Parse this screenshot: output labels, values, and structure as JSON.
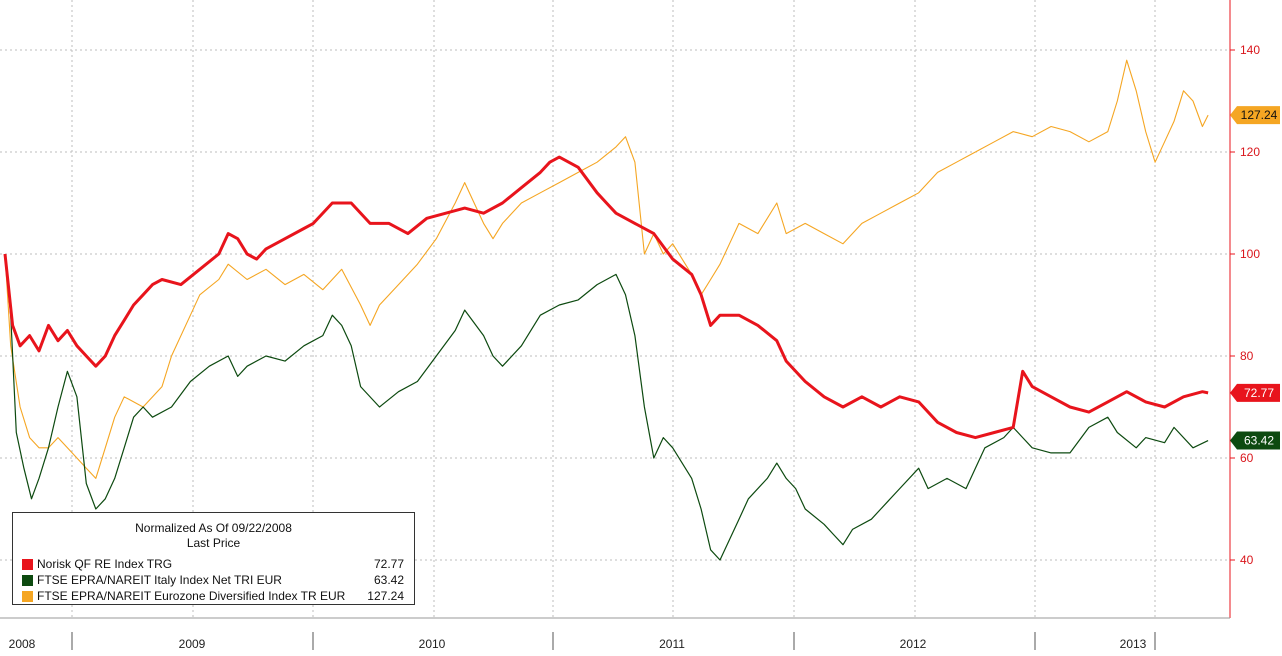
{
  "chart_data": {
    "type": "line",
    "legend": {
      "title": "Normalized As Of 09/22/2008",
      "subtitle": "Last Price",
      "placement": "bottom-left"
    },
    "x_labels": [
      "2008",
      "2009",
      "2010",
      "2011",
      "2012",
      "2013"
    ],
    "y_ticks": [
      40,
      60,
      80,
      100,
      120,
      140
    ],
    "ylim": [
      28,
      160
    ],
    "grid": true,
    "y_axis_side": "right",
    "series": [
      {
        "name": "Norisk QF RE Index TRG",
        "last": "72.77",
        "color": "#e8141c",
        "values": [
          [
            2008.72,
            100
          ],
          [
            2008.76,
            86
          ],
          [
            2008.8,
            82
          ],
          [
            2008.85,
            84
          ],
          [
            2008.9,
            81
          ],
          [
            2008.95,
            86
          ],
          [
            2009.0,
            83
          ],
          [
            2009.05,
            85
          ],
          [
            2009.1,
            82
          ],
          [
            2009.15,
            80
          ],
          [
            2009.2,
            78
          ],
          [
            2009.25,
            80
          ],
          [
            2009.3,
            84
          ],
          [
            2009.35,
            87
          ],
          [
            2009.4,
            90
          ],
          [
            2009.45,
            92
          ],
          [
            2009.5,
            94
          ],
          [
            2009.55,
            95
          ],
          [
            2009.65,
            94
          ],
          [
            2009.75,
            97
          ],
          [
            2009.85,
            100
          ],
          [
            2009.9,
            104
          ],
          [
            2009.95,
            103
          ],
          [
            2010.0,
            100
          ],
          [
            2010.05,
            99
          ],
          [
            2010.1,
            101
          ],
          [
            2010.2,
            103
          ],
          [
            2010.3,
            105
          ],
          [
            2010.35,
            106
          ],
          [
            2010.45,
            110
          ],
          [
            2010.55,
            110
          ],
          [
            2010.65,
            106
          ],
          [
            2010.75,
            106
          ],
          [
            2010.85,
            104
          ],
          [
            2010.95,
            107
          ],
          [
            2011.05,
            108
          ],
          [
            2011.15,
            109
          ],
          [
            2011.25,
            108
          ],
          [
            2011.35,
            110
          ],
          [
            2011.45,
            113
          ],
          [
            2011.55,
            116
          ],
          [
            2011.6,
            118
          ],
          [
            2011.65,
            119
          ],
          [
            2011.75,
            117
          ],
          [
            2011.85,
            112
          ],
          [
            2011.9,
            110
          ],
          [
            2011.95,
            108
          ],
          [
            2012.05,
            106
          ],
          [
            2012.15,
            104
          ],
          [
            2012.25,
            99
          ],
          [
            2012.35,
            96
          ],
          [
            2012.4,
            92
          ],
          [
            2012.45,
            86
          ],
          [
            2012.5,
            88
          ],
          [
            2012.6,
            88
          ],
          [
            2012.7,
            86
          ],
          [
            2012.8,
            83
          ],
          [
            2012.85,
            79
          ],
          [
            2012.95,
            75
          ],
          [
            2013.05,
            72
          ],
          [
            2013.15,
            70
          ],
          [
            2013.25,
            72
          ],
          [
            2013.35,
            70
          ],
          [
            2013.45,
            72
          ],
          [
            2013.55,
            71
          ],
          [
            2013.65,
            67
          ],
          [
            2013.75,
            65
          ],
          [
            2013.85,
            64
          ],
          [
            2013.95,
            65
          ],
          [
            2014.05,
            66
          ],
          [
            2014.1,
            77
          ],
          [
            2014.15,
            74
          ],
          [
            2014.25,
            72
          ],
          [
            2014.35,
            70
          ],
          [
            2014.45,
            69
          ],
          [
            2014.55,
            71
          ],
          [
            2014.65,
            73
          ],
          [
            2014.75,
            71
          ],
          [
            2014.85,
            70
          ],
          [
            2014.95,
            72
          ],
          [
            2015.05,
            73
          ],
          [
            2015.08,
            72.77
          ]
        ]
      },
      {
        "name": "FTSE EPRA/NAREIT Italy Index Net TRI EUR",
        "last": "63.42",
        "color": "#0d4a10",
        "values": [
          [
            2008.72,
            100
          ],
          [
            2008.75,
            88
          ],
          [
            2008.78,
            65
          ],
          [
            2008.82,
            58
          ],
          [
            2008.86,
            52
          ],
          [
            2008.9,
            56
          ],
          [
            2008.95,
            62
          ],
          [
            2009.0,
            70
          ],
          [
            2009.05,
            77
          ],
          [
            2009.1,
            72
          ],
          [
            2009.15,
            55
          ],
          [
            2009.2,
            50
          ],
          [
            2009.25,
            52
          ],
          [
            2009.3,
            56
          ],
          [
            2009.35,
            62
          ],
          [
            2009.4,
            68
          ],
          [
            2009.45,
            70
          ],
          [
            2009.5,
            68
          ],
          [
            2009.6,
            70
          ],
          [
            2009.7,
            75
          ],
          [
            2009.8,
            78
          ],
          [
            2009.9,
            80
          ],
          [
            2009.95,
            76
          ],
          [
            2010.0,
            78
          ],
          [
            2010.1,
            80
          ],
          [
            2010.2,
            79
          ],
          [
            2010.3,
            82
          ],
          [
            2010.4,
            84
          ],
          [
            2010.45,
            88
          ],
          [
            2010.5,
            86
          ],
          [
            2010.55,
            82
          ],
          [
            2010.6,
            74
          ],
          [
            2010.7,
            70
          ],
          [
            2010.8,
            73
          ],
          [
            2010.9,
            75
          ],
          [
            2011.0,
            80
          ],
          [
            2011.1,
            85
          ],
          [
            2011.15,
            89
          ],
          [
            2011.25,
            84
          ],
          [
            2011.3,
            80
          ],
          [
            2011.35,
            78
          ],
          [
            2011.45,
            82
          ],
          [
            2011.55,
            88
          ],
          [
            2011.65,
            90
          ],
          [
            2011.75,
            91
          ],
          [
            2011.85,
            94
          ],
          [
            2011.95,
            96
          ],
          [
            2012.0,
            92
          ],
          [
            2012.05,
            84
          ],
          [
            2012.1,
            70
          ],
          [
            2012.15,
            60
          ],
          [
            2012.2,
            64
          ],
          [
            2012.25,
            62
          ],
          [
            2012.35,
            56
          ],
          [
            2012.4,
            50
          ],
          [
            2012.45,
            42
          ],
          [
            2012.5,
            40
          ],
          [
            2012.55,
            44
          ],
          [
            2012.6,
            48
          ],
          [
            2012.65,
            52
          ],
          [
            2012.75,
            56
          ],
          [
            2012.8,
            59
          ],
          [
            2012.85,
            56
          ],
          [
            2012.9,
            54
          ],
          [
            2012.95,
            50
          ],
          [
            2013.05,
            47
          ],
          [
            2013.1,
            45
          ],
          [
            2013.15,
            43
          ],
          [
            2013.2,
            46
          ],
          [
            2013.3,
            48
          ],
          [
            2013.35,
            50
          ],
          [
            2013.45,
            54
          ],
          [
            2013.55,
            58
          ],
          [
            2013.6,
            54
          ],
          [
            2013.7,
            56
          ],
          [
            2013.8,
            54
          ],
          [
            2013.85,
            58
          ],
          [
            2013.9,
            62
          ],
          [
            2014.0,
            64
          ],
          [
            2014.05,
            66
          ],
          [
            2014.1,
            64
          ],
          [
            2014.15,
            62
          ],
          [
            2014.25,
            61
          ],
          [
            2014.35,
            61
          ],
          [
            2014.45,
            66
          ],
          [
            2014.55,
            68
          ],
          [
            2014.6,
            65
          ],
          [
            2014.7,
            62
          ],
          [
            2014.75,
            64
          ],
          [
            2014.85,
            63
          ],
          [
            2014.9,
            66
          ],
          [
            2015.0,
            62
          ],
          [
            2015.08,
            63.42
          ]
        ]
      },
      {
        "name": "FTSE EPRA/NAREIT Eurozone Diversified Index TR EUR",
        "last": "127.24",
        "color": "#f5a623",
        "values": [
          [
            2008.72,
            100
          ],
          [
            2008.75,
            82
          ],
          [
            2008.8,
            70
          ],
          [
            2008.85,
            64
          ],
          [
            2008.9,
            62
          ],
          [
            2008.95,
            62
          ],
          [
            2009.0,
            64
          ],
          [
            2009.05,
            62
          ],
          [
            2009.1,
            60
          ],
          [
            2009.15,
            58
          ],
          [
            2009.2,
            56
          ],
          [
            2009.25,
            62
          ],
          [
            2009.3,
            68
          ],
          [
            2009.35,
            72
          ],
          [
            2009.45,
            70
          ],
          [
            2009.55,
            74
          ],
          [
            2009.6,
            80
          ],
          [
            2009.7,
            88
          ],
          [
            2009.75,
            92
          ],
          [
            2009.85,
            95
          ],
          [
            2009.9,
            98
          ],
          [
            2010.0,
            95
          ],
          [
            2010.1,
            97
          ],
          [
            2010.2,
            94
          ],
          [
            2010.3,
            96
          ],
          [
            2010.4,
            93
          ],
          [
            2010.5,
            97
          ],
          [
            2010.6,
            90
          ],
          [
            2010.65,
            86
          ],
          [
            2010.7,
            90
          ],
          [
            2010.8,
            94
          ],
          [
            2010.9,
            98
          ],
          [
            2011.0,
            103
          ],
          [
            2011.1,
            110
          ],
          [
            2011.15,
            114
          ],
          [
            2011.25,
            106
          ],
          [
            2011.3,
            103
          ],
          [
            2011.35,
            106
          ],
          [
            2011.45,
            110
          ],
          [
            2011.55,
            112
          ],
          [
            2011.65,
            114
          ],
          [
            2011.75,
            116
          ],
          [
            2011.85,
            118
          ],
          [
            2011.95,
            121
          ],
          [
            2012.0,
            123
          ],
          [
            2012.05,
            118
          ],
          [
            2012.1,
            100
          ],
          [
            2012.15,
            104
          ],
          [
            2012.2,
            100
          ],
          [
            2012.25,
            102
          ],
          [
            2012.35,
            96
          ],
          [
            2012.4,
            92
          ],
          [
            2012.45,
            95
          ],
          [
            2012.5,
            98
          ],
          [
            2012.55,
            102
          ],
          [
            2012.6,
            106
          ],
          [
            2012.7,
            104
          ],
          [
            2012.8,
            110
          ],
          [
            2012.85,
            104
          ],
          [
            2012.95,
            106
          ],
          [
            2013.05,
            104
          ],
          [
            2013.15,
            102
          ],
          [
            2013.25,
            106
          ],
          [
            2013.35,
            108
          ],
          [
            2013.45,
            110
          ],
          [
            2013.55,
            112
          ],
          [
            2013.65,
            116
          ],
          [
            2013.75,
            118
          ],
          [
            2013.85,
            120
          ],
          [
            2013.95,
            122
          ],
          [
            2014.05,
            124
          ],
          [
            2014.15,
            123
          ],
          [
            2014.25,
            125
          ],
          [
            2014.35,
            124
          ],
          [
            2014.45,
            122
          ],
          [
            2014.55,
            124
          ],
          [
            2014.6,
            130
          ],
          [
            2014.65,
            138
          ],
          [
            2014.7,
            132
          ],
          [
            2014.75,
            124
          ],
          [
            2014.8,
            118
          ],
          [
            2014.85,
            122
          ],
          [
            2014.9,
            126
          ],
          [
            2014.95,
            132
          ],
          [
            2015.0,
            130
          ],
          [
            2015.05,
            125
          ],
          [
            2015.08,
            127.24
          ]
        ]
      }
    ]
  }
}
